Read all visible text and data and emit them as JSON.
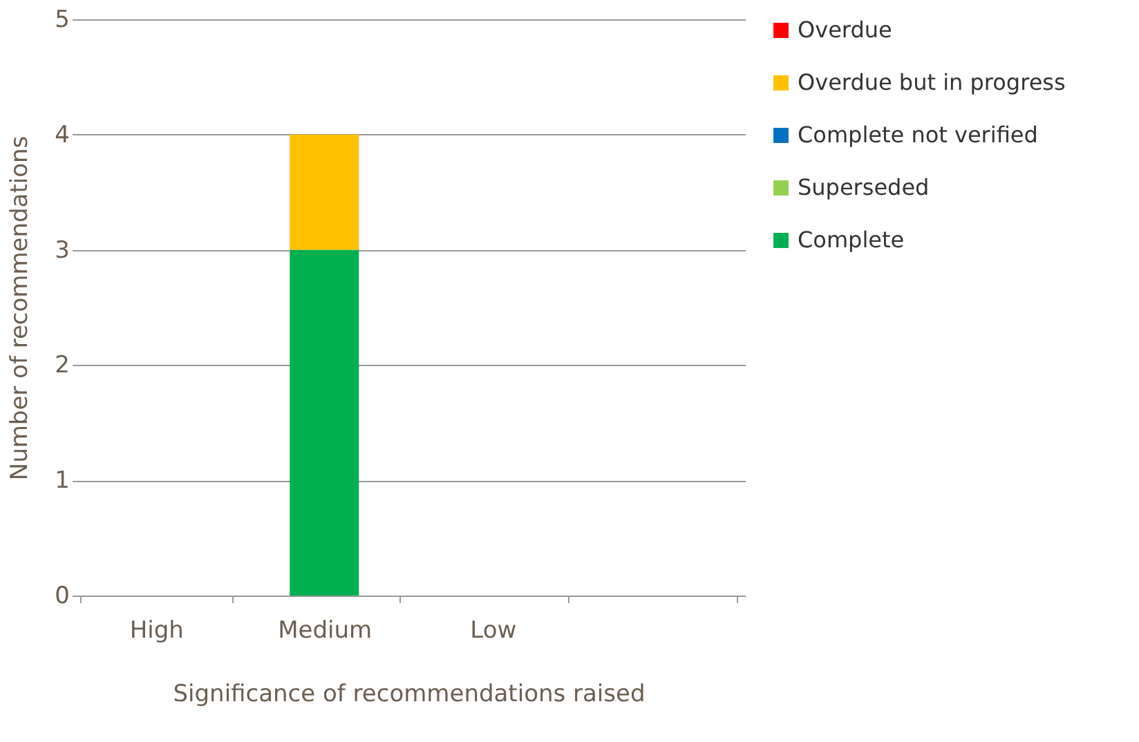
{
  "chart_data": {
    "type": "bar",
    "stacked": true,
    "xlabel": "Significance of recommendations raised",
    "ylabel": "Number of recommendations",
    "categories": [
      "High",
      "Medium",
      "Low",
      null
    ],
    "series": [
      {
        "name": "Complete",
        "color": "#00b050",
        "values": [
          0,
          3,
          0,
          0
        ]
      },
      {
        "name": "Superseded",
        "color": "#92d050",
        "values": [
          0,
          0,
          0,
          0
        ]
      },
      {
        "name": "Complete not verified",
        "color": "#0070c0",
        "values": [
          0,
          0,
          0,
          0
        ]
      },
      {
        "name": "Overdue but in progress",
        "color": "#ffc000",
        "values": [
          0,
          1,
          0,
          0
        ]
      },
      {
        "name": "Overdue",
        "color": "#ff0000",
        "values": [
          0,
          0,
          0,
          0
        ]
      }
    ],
    "ylim": [
      0,
      5
    ],
    "yticks": [
      0,
      1,
      2,
      3,
      4,
      5
    ],
    "grid": "y",
    "legend": "right"
  }
}
